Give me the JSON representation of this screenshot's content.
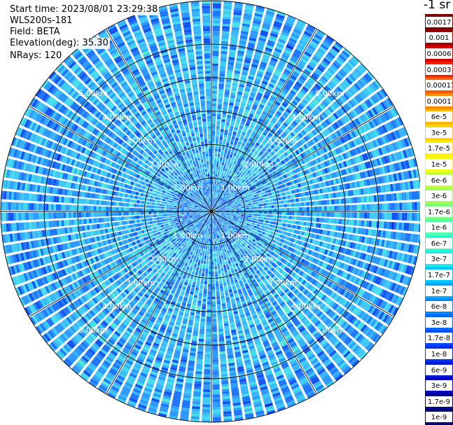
{
  "info": {
    "start_time": "Start time: 2023/08/01 23:29:38",
    "instrument": "WLS200s-181",
    "field": "Field: BETA",
    "elevation": "Elevation(deg): 35.30",
    "nrays": "NRays: 120"
  },
  "colorbar": {
    "unit_title": "-1 sr",
    "labels": [
      "0.0017",
      "0.001",
      "0.0006",
      "0.0003",
      "0.00017",
      "0.0001",
      "6e-5",
      "3e-5",
      "1.7e-5",
      "1e-5",
      "6e-6",
      "3e-6",
      "1.7e-6",
      "1e-6",
      "6e-7",
      "3e-7",
      "1.7e-7",
      "1e-7",
      "6e-8",
      "3e-8",
      "1.7e-8",
      "1e-8",
      "6e-9",
      "3e-9",
      "1.7e-9",
      "1e-9"
    ],
    "colors": [
      "#7f0000",
      "#a50000",
      "#d40000",
      "#ff1a00",
      "#ff5a00",
      "#ff8a00",
      "#ffb400",
      "#ffd400",
      "#fff000",
      "#f0ff10",
      "#c8ff30",
      "#a0ff58",
      "#78ff80",
      "#50ffa8",
      "#30f8d0",
      "#18e8f0",
      "#00c8ff",
      "#00a8ff",
      "#0088ff",
      "#0068ff",
      "#0048ff",
      "#0030f0",
      "#0018d8",
      "#0000c0",
      "#00009a",
      "#000070"
    ]
  },
  "chart_data": {
    "type": "heatmap",
    "subtype": "polar PPI scan",
    "field": "BETA",
    "n_rays": 120,
    "elevation_deg": 35.3,
    "range_rings_km": [
      1.0,
      2.0,
      3.0,
      4.0,
      5.0
    ],
    "ring_labels": [
      "1.00km",
      "2.00km",
      "3.00km",
      "4.00km",
      "5.00km"
    ],
    "spokes_deg": [
      0,
      30,
      60,
      90,
      120,
      150,
      180,
      210,
      240,
      270,
      300,
      330
    ],
    "max_range_km": 6.3,
    "typical_value_range": [
      "1e-8",
      "1e-7"
    ],
    "colorscale": "log jet"
  }
}
